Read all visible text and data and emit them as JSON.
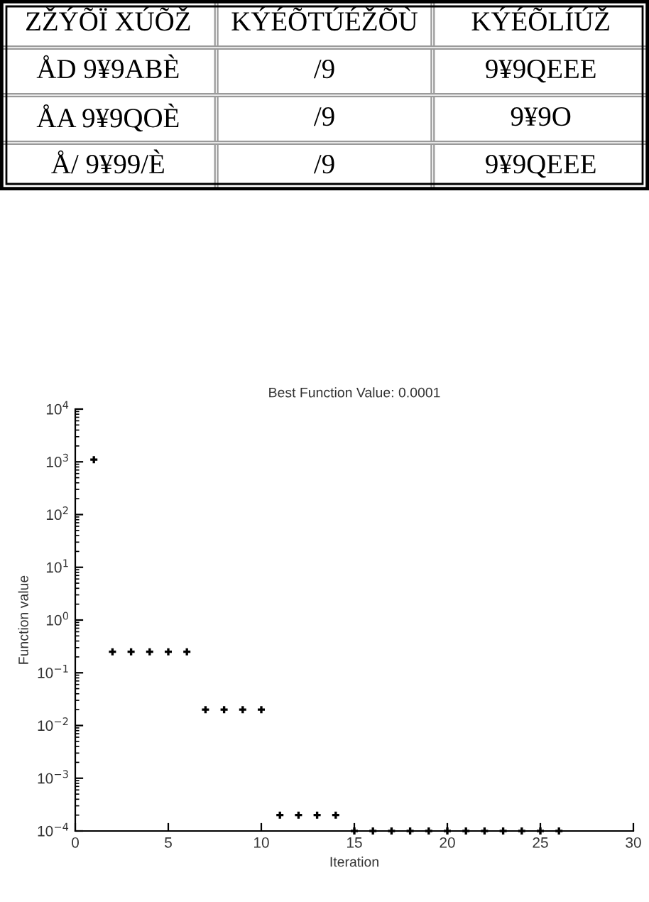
{
  "chart_data": [
    {
      "type": "other",
      "categories": [
        "ZŽÝÕÏ XÚÕŽ",
        "KÝÉÕTÚÉŽÕÙ",
        "KÝÉÕLÍÚŽ"
      ],
      "cell_labels": [
        [
          "ÅD 9¥9ABÈ",
          "/9",
          "9¥9QEEE"
        ],
        [
          "ÅA 9¥9QOÈ",
          "/9",
          "9¥9O"
        ],
        [
          "Å/ 9¥99/È",
          "/9",
          "9¥9QEEE"
        ]
      ]
    },
    {
      "type": "scatter",
      "title": "Best Function Value: 0.0001",
      "xlabel": "Iteration",
      "ylabel": "Function value",
      "log": "y",
      "marker": "cross",
      "x": [
        1,
        2,
        3,
        4,
        5,
        6,
        7,
        8,
        9,
        10,
        11,
        12,
        13,
        14,
        15,
        16,
        17,
        18,
        19,
        20,
        21,
        22,
        23,
        24,
        25,
        26
      ],
      "series": [
        {
          "color": "#000000",
          "values": [
            1100,
            0.25,
            0.25,
            0.25,
            0.25,
            0.25,
            0.02,
            0.02,
            0.02,
            0.02,
            0.0002,
            0.0002,
            0.0002,
            0.0002,
            0.0001,
            0.0001,
            0.0001,
            0.0001,
            0.0001,
            0.0001,
            0.0001,
            0.0001,
            0.0001,
            0.0001,
            0.0001,
            0.0001
          ]
        }
      ],
      "xlim": [
        0,
        30
      ],
      "xticks": [
        0,
        5,
        10,
        15,
        20,
        25,
        30
      ],
      "ylim": [
        0.0001,
        10000
      ],
      "yticks": [
        {
          "value": 0.0001,
          "label": "10$^{−4}$"
        },
        {
          "value": 0.001,
          "label": "10$^{−3}$"
        },
        {
          "value": 0.01,
          "label": "10$^{−2}$"
        },
        {
          "value": 0.1,
          "label": "10$^{−1}$"
        },
        {
          "value": 1,
          "label": "10$^{0}$"
        },
        {
          "value": 10,
          "label": "10$^{1}$"
        },
        {
          "value": 100,
          "label": "10$^{2}$"
        },
        {
          "value": 1000,
          "label": "10$^{3}$"
        },
        {
          "value": 10000,
          "label": "10$^{4}$"
        }
      ]
    }
  ]
}
